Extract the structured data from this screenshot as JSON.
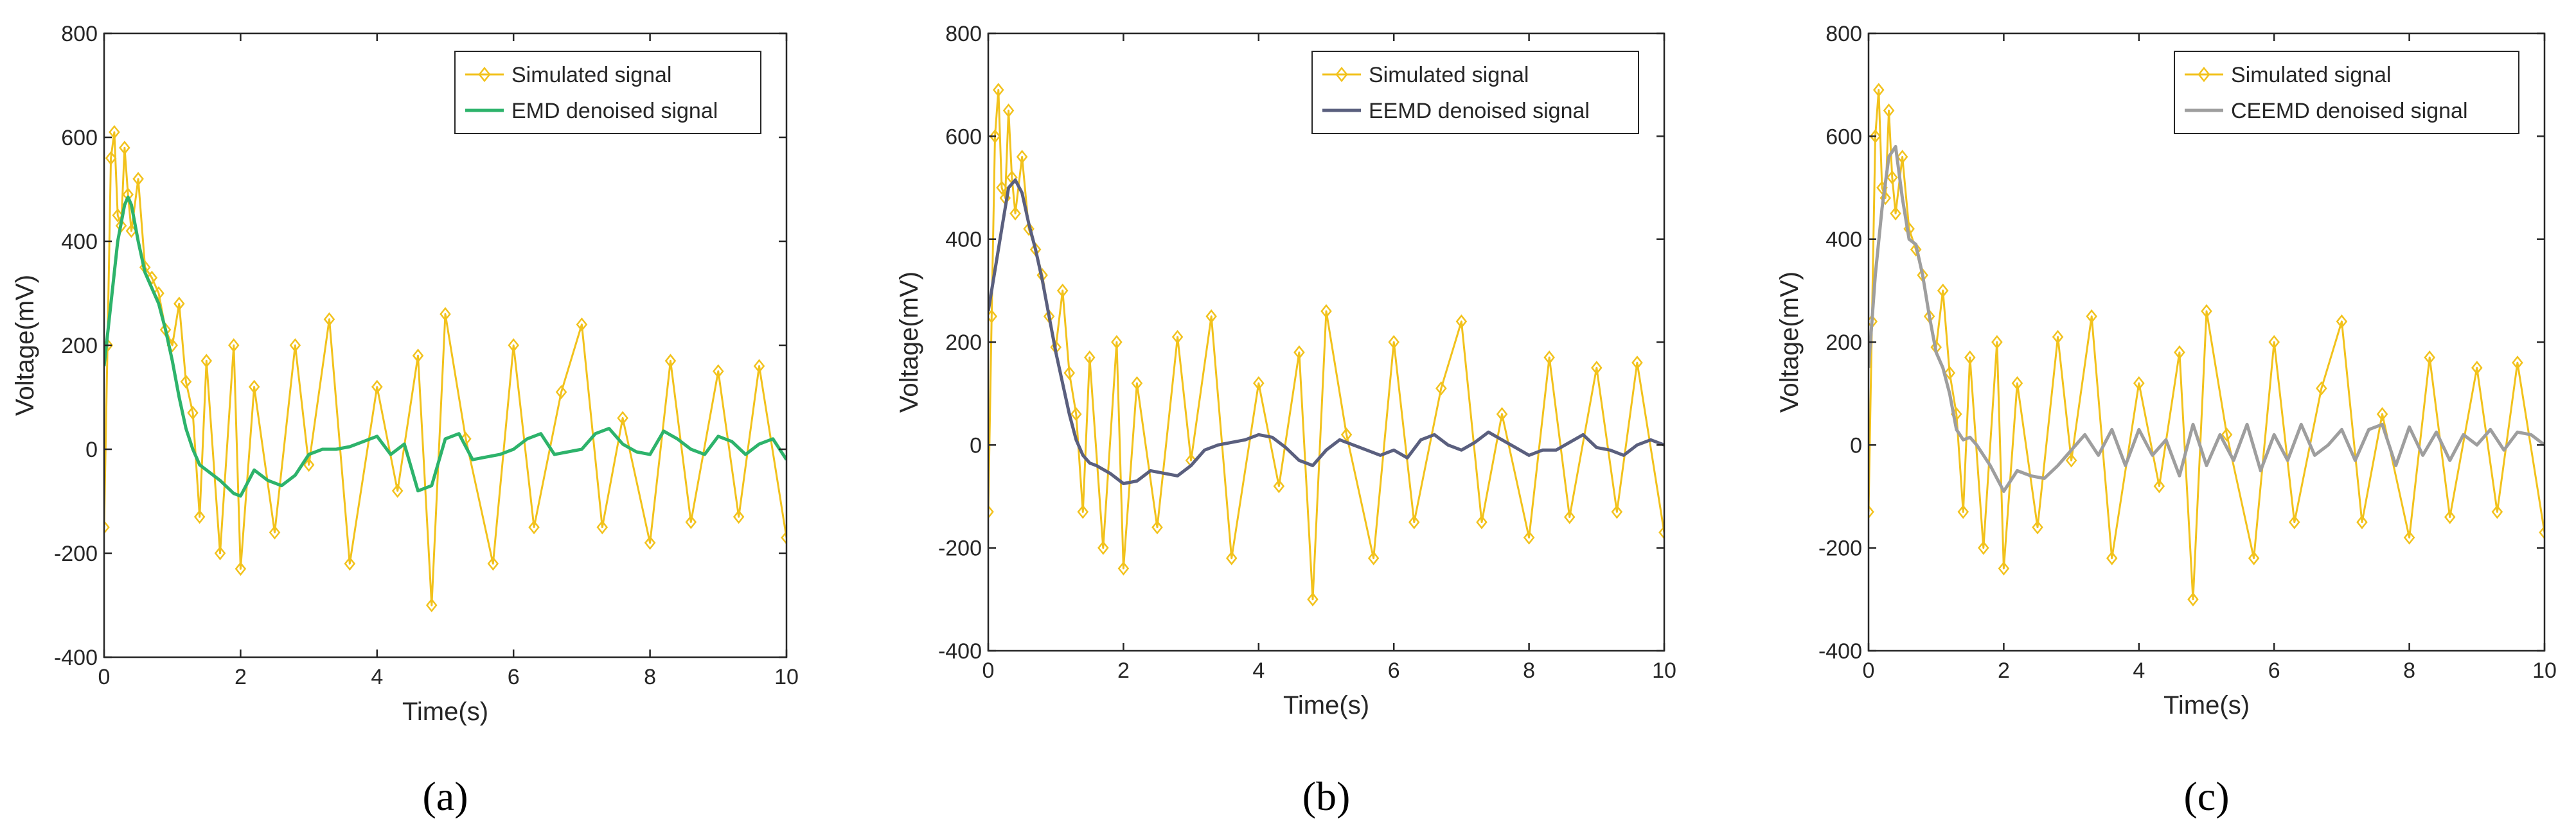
{
  "colors": {
    "simulated": "#F2C21C",
    "axes": "#262626",
    "legend_border": "#262626"
  },
  "chart_data": [
    {
      "type": "line",
      "panel_label": "(a)",
      "xlabel": "Time(s)",
      "ylabel": "Voltage(mV)",
      "xlim": [
        0,
        10
      ],
      "ylim": [
        -400,
        800
      ],
      "xticks": [
        0,
        2,
        4,
        6,
        8,
        10
      ],
      "yticks": [
        -400,
        -200,
        0,
        200,
        400,
        600,
        800
      ],
      "legend_position": "top-right",
      "grid": false,
      "series": [
        {
          "name": "Simulated signal",
          "color": "#F2C21C",
          "marker": "diamond",
          "x": [
            0,
            0.05,
            0.1,
            0.15,
            0.2,
            0.25,
            0.3,
            0.35,
            0.4,
            0.5,
            0.6,
            0.7,
            0.8,
            0.9,
            1.0,
            1.1,
            1.2,
            1.3,
            1.4,
            1.5,
            1.7,
            1.9,
            2.0,
            2.2,
            2.5,
            2.8,
            3.0,
            3.3,
            3.6,
            4.0,
            4.3,
            4.6,
            4.8,
            5.0,
            5.3,
            5.7,
            6.0,
            6.3,
            6.7,
            7.0,
            7.3,
            7.6,
            8.0,
            8.3,
            8.6,
            9.0,
            9.3,
            9.6,
            10.0
          ],
          "values": [
            -150,
            200,
            560,
            610,
            450,
            430,
            580,
            490,
            420,
            520,
            350,
            330,
            300,
            230,
            200,
            280,
            130,
            70,
            -130,
            170,
            -200,
            200,
            -230,
            120,
            -160,
            200,
            -30,
            250,
            -220,
            120,
            -80,
            180,
            -300,
            260,
            20,
            -220,
            200,
            -150,
            110,
            240,
            -150,
            60,
            -180,
            170,
            -140,
            150,
            -130,
            160,
            -170
          ]
        },
        {
          "name": "EMD denoised signal",
          "color": "#2DB36B",
          "x": [
            0,
            0.1,
            0.2,
            0.3,
            0.35,
            0.4,
            0.5,
            0.6,
            0.7,
            0.8,
            0.9,
            1.0,
            1.1,
            1.2,
            1.3,
            1.4,
            1.5,
            1.7,
            1.9,
            2.0,
            2.2,
            2.4,
            2.6,
            2.8,
            3.0,
            3.2,
            3.4,
            3.6,
            3.8,
            4.0,
            4.2,
            4.4,
            4.6,
            4.8,
            5.0,
            5.2,
            5.4,
            5.6,
            5.8,
            6.0,
            6.2,
            6.4,
            6.6,
            6.8,
            7.0,
            7.2,
            7.4,
            7.6,
            7.8,
            8.0,
            8.2,
            8.4,
            8.6,
            8.8,
            9.0,
            9.2,
            9.4,
            9.6,
            9.8,
            10.0
          ],
          "values": [
            160,
            280,
            400,
            470,
            485,
            470,
            400,
            340,
            310,
            280,
            230,
            170,
            100,
            40,
            0,
            -30,
            -40,
            -60,
            -85,
            -90,
            -40,
            -60,
            -70,
            -50,
            -10,
            0,
            0,
            5,
            15,
            25,
            -10,
            10,
            -80,
            -70,
            20,
            30,
            -20,
            -15,
            -10,
            0,
            20,
            30,
            -10,
            -5,
            0,
            30,
            40,
            10,
            -5,
            -10,
            35,
            20,
            0,
            -10,
            25,
            15,
            -10,
            10,
            20,
            -20
          ]
        }
      ]
    },
    {
      "type": "line",
      "panel_label": "(b)",
      "xlabel": "Time(s)",
      "ylabel": "Voltage(mV)",
      "xlim": [
        0,
        10
      ],
      "ylim": [
        -400,
        800
      ],
      "xticks": [
        0,
        2,
        4,
        6,
        8,
        10
      ],
      "yticks": [
        -400,
        -200,
        0,
        200,
        400,
        600,
        800
      ],
      "legend_position": "top-right",
      "grid": false,
      "series": [
        {
          "name": "Simulated signal",
          "color": "#F2C21C",
          "marker": "diamond",
          "x": [
            0,
            0.05,
            0.1,
            0.15,
            0.2,
            0.25,
            0.3,
            0.35,
            0.4,
            0.5,
            0.6,
            0.7,
            0.8,
            0.9,
            1.0,
            1.1,
            1.2,
            1.3,
            1.4,
            1.5,
            1.7,
            1.9,
            2.0,
            2.2,
            2.5,
            2.8,
            3.0,
            3.3,
            3.6,
            4.0,
            4.3,
            4.6,
            4.8,
            5.0,
            5.3,
            5.7,
            6.0,
            6.3,
            6.7,
            7.0,
            7.3,
            7.6,
            8.0,
            8.3,
            8.6,
            9.0,
            9.3,
            9.6,
            10.0
          ],
          "values": [
            -130,
            250,
            600,
            690,
            500,
            480,
            650,
            520,
            450,
            560,
            420,
            380,
            330,
            250,
            190,
            300,
            140,
            60,
            -130,
            170,
            -200,
            200,
            -240,
            120,
            -160,
            210,
            -30,
            250,
            -220,
            120,
            -80,
            180,
            -300,
            260,
            20,
            -220,
            200,
            -150,
            110,
            240,
            -150,
            60,
            -180,
            170,
            -140,
            150,
            -130,
            160,
            -170
          ]
        },
        {
          "name": "EEMD denoised signal",
          "color": "#5A5F7E",
          "x": [
            0,
            0.1,
            0.2,
            0.3,
            0.4,
            0.5,
            0.6,
            0.7,
            0.8,
            0.9,
            1.0,
            1.1,
            1.2,
            1.3,
            1.4,
            1.5,
            1.6,
            1.8,
            2.0,
            2.2,
            2.4,
            2.6,
            2.8,
            3.0,
            3.2,
            3.4,
            3.6,
            3.8,
            4.0,
            4.2,
            4.4,
            4.6,
            4.8,
            5.0,
            5.2,
            5.4,
            5.6,
            5.8,
            6.0,
            6.2,
            6.4,
            6.6,
            6.8,
            7.0,
            7.2,
            7.4,
            7.6,
            7.8,
            8.0,
            8.2,
            8.4,
            8.6,
            8.8,
            9.0,
            9.2,
            9.4,
            9.6,
            9.8,
            10.0
          ],
          "values": [
            260,
            340,
            420,
            500,
            515,
            490,
            430,
            380,
            320,
            250,
            180,
            120,
            60,
            10,
            -20,
            -35,
            -40,
            -55,
            -75,
            -70,
            -50,
            -55,
            -60,
            -40,
            -10,
            0,
            5,
            10,
            20,
            15,
            -5,
            -30,
            -40,
            -10,
            10,
            0,
            -10,
            -20,
            -10,
            -25,
            10,
            20,
            0,
            -10,
            5,
            25,
            10,
            -5,
            -20,
            -10,
            -10,
            5,
            20,
            -5,
            -10,
            -20,
            0,
            10,
            0
          ]
        }
      ]
    },
    {
      "type": "line",
      "panel_label": "(c)",
      "xlabel": "Time(s)",
      "ylabel": "Voltage(mV)",
      "xlim": [
        0,
        10
      ],
      "ylim": [
        -400,
        800
      ],
      "xticks": [
        0,
        2,
        4,
        6,
        8,
        10
      ],
      "yticks": [
        -400,
        -200,
        0,
        200,
        400,
        600,
        800
      ],
      "legend_position": "top-right",
      "grid": false,
      "series": [
        {
          "name": "Simulated signal",
          "color": "#F2C21C",
          "marker": "diamond",
          "x": [
            0,
            0.05,
            0.1,
            0.15,
            0.2,
            0.25,
            0.3,
            0.35,
            0.4,
            0.5,
            0.6,
            0.7,
            0.8,
            0.9,
            1.0,
            1.1,
            1.2,
            1.3,
            1.4,
            1.5,
            1.7,
            1.9,
            2.0,
            2.2,
            2.5,
            2.8,
            3.0,
            3.3,
            3.6,
            4.0,
            4.3,
            4.6,
            4.8,
            5.0,
            5.3,
            5.7,
            6.0,
            6.3,
            6.7,
            7.0,
            7.3,
            7.6,
            8.0,
            8.3,
            8.6,
            9.0,
            9.3,
            9.6,
            10.0
          ],
          "values": [
            -130,
            240,
            600,
            690,
            500,
            480,
            650,
            520,
            450,
            560,
            420,
            380,
            330,
            250,
            190,
            300,
            140,
            60,
            -130,
            170,
            -200,
            200,
            -240,
            120,
            -160,
            210,
            -30,
            250,
            -220,
            120,
            -80,
            180,
            -300,
            260,
            20,
            -220,
            200,
            -150,
            110,
            240,
            -150,
            60,
            -180,
            170,
            -140,
            150,
            -130,
            160,
            -170
          ]
        },
        {
          "name": "CEEMD denoised signal",
          "color": "#9E9E9E",
          "x": [
            0,
            0.1,
            0.2,
            0.3,
            0.4,
            0.5,
            0.6,
            0.7,
            0.8,
            0.9,
            1.0,
            1.1,
            1.2,
            1.3,
            1.4,
            1.5,
            1.6,
            1.8,
            2.0,
            2.2,
            2.4,
            2.6,
            2.8,
            3.0,
            3.2,
            3.4,
            3.6,
            3.8,
            4.0,
            4.2,
            4.4,
            4.6,
            4.8,
            5.0,
            5.2,
            5.4,
            5.6,
            5.8,
            6.0,
            6.2,
            6.4,
            6.6,
            6.8,
            7.0,
            7.2,
            7.4,
            7.6,
            7.8,
            8.0,
            8.2,
            8.4,
            8.6,
            8.8,
            9.0,
            9.2,
            9.4,
            9.6,
            9.8,
            10.0
          ],
          "values": [
            150,
            330,
            460,
            560,
            580,
            480,
            400,
            390,
            330,
            250,
            180,
            150,
            100,
            30,
            10,
            15,
            0,
            -40,
            -90,
            -50,
            -60,
            -65,
            -40,
            -10,
            20,
            -20,
            30,
            -40,
            30,
            -20,
            10,
            -60,
            40,
            -40,
            20,
            -30,
            40,
            -50,
            20,
            -30,
            40,
            -20,
            0,
            30,
            -30,
            30,
            40,
            -40,
            35,
            -20,
            25,
            -30,
            20,
            0,
            30,
            -10,
            25,
            20,
            0
          ]
        }
      ]
    }
  ]
}
